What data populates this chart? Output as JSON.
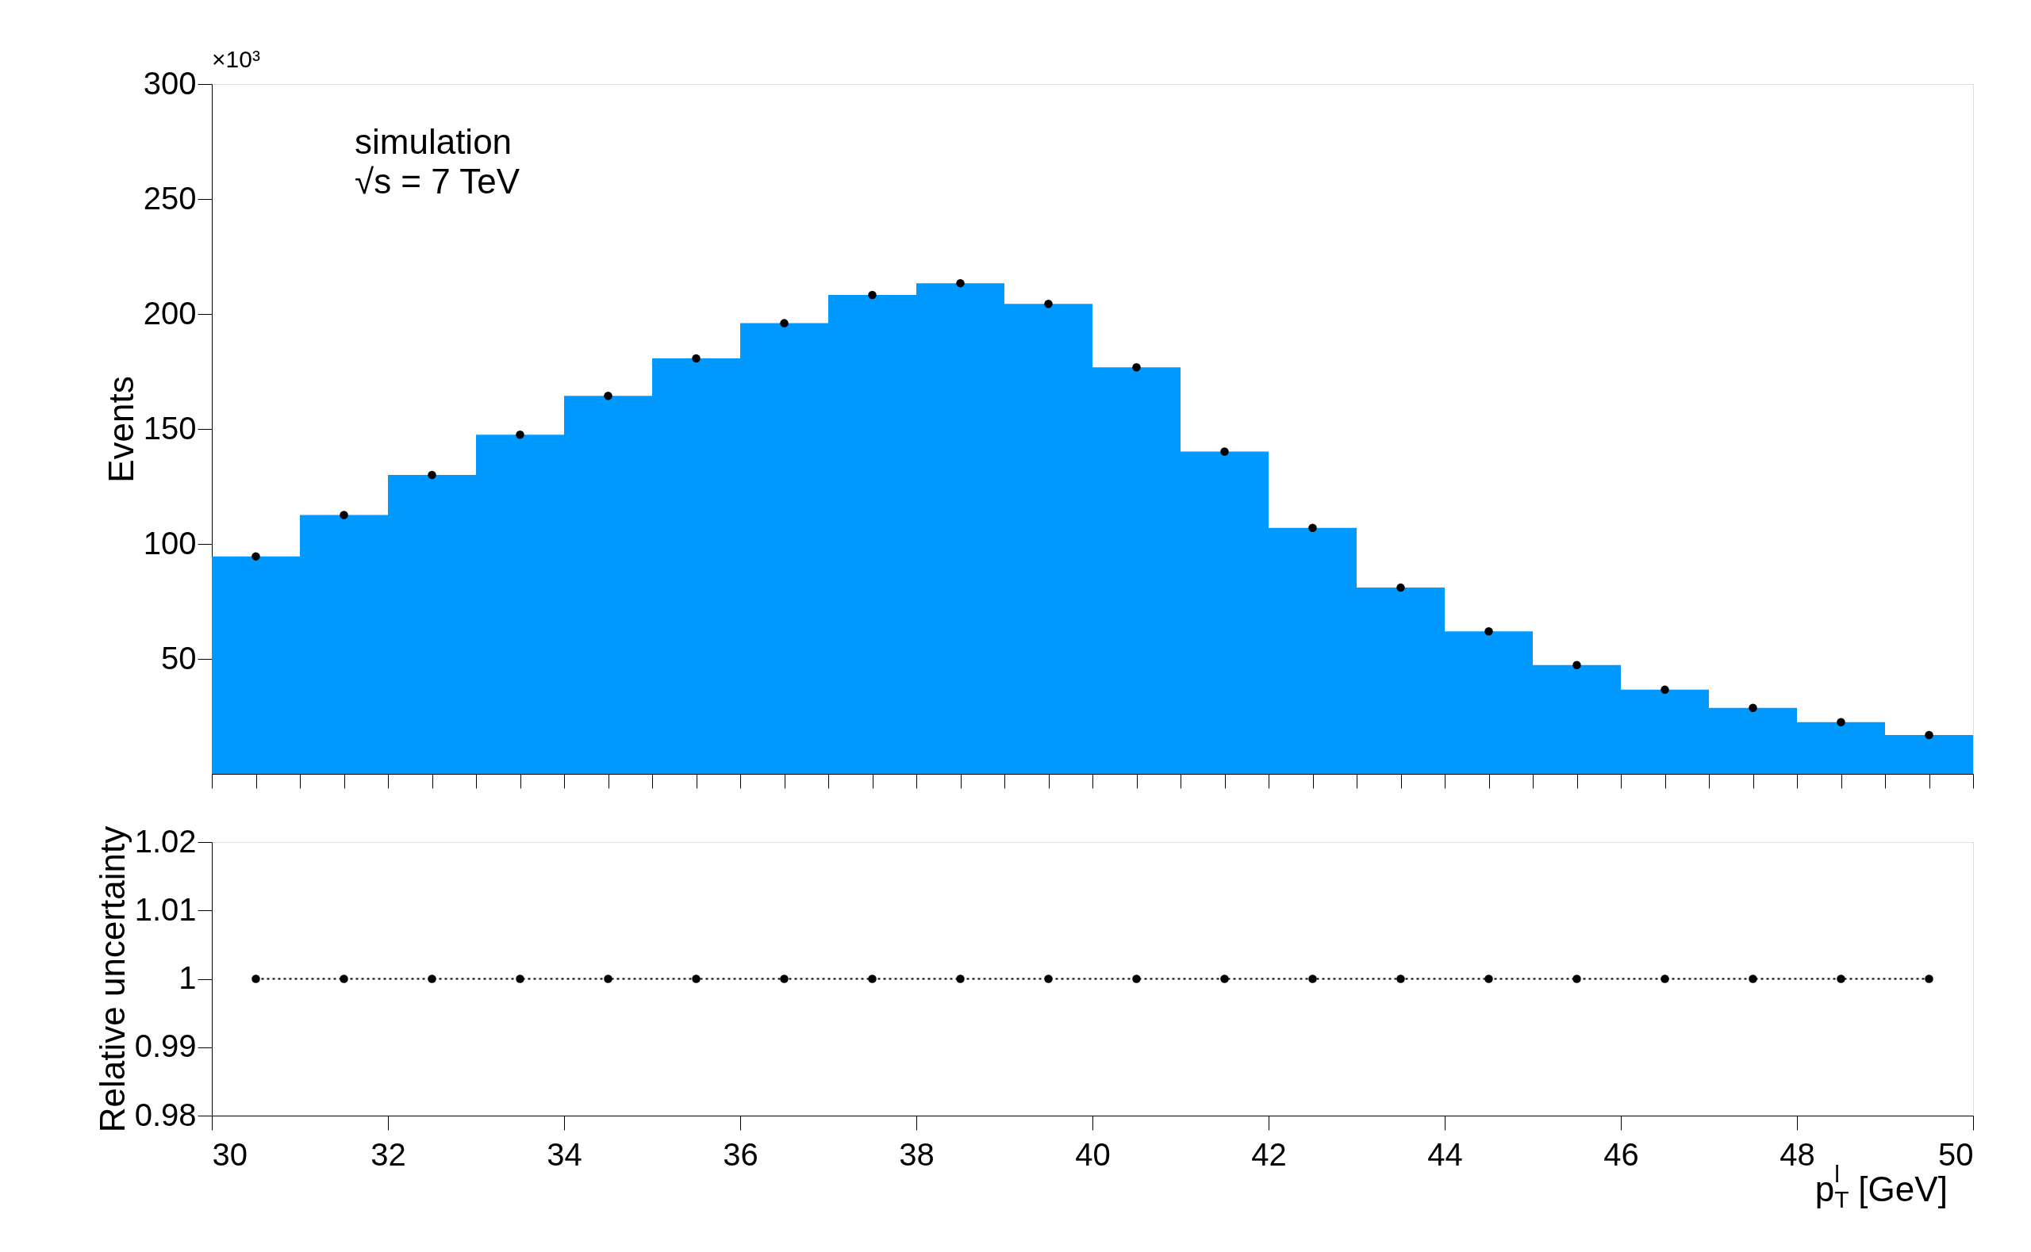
{
  "chart_data": [
    {
      "type": "histogram",
      "ylabel": "Events",
      "annotations": [
        "×10³",
        "simulation",
        "√s = 7 TeV"
      ],
      "bins": [
        30,
        31,
        32,
        33,
        34,
        35,
        36,
        37,
        38,
        39,
        40,
        41,
        42,
        43,
        44,
        45,
        46,
        47,
        48,
        49,
        50
      ],
      "series": [
        {
          "type": "histogram",
          "color": "#0099ff",
          "values": [
            94.6,
            112.6,
            130,
            147.5,
            164.4,
            180.7,
            196,
            208.3,
            213.4,
            204.4,
            176.8,
            140.2,
            107,
            81,
            62,
            47.3,
            36.6,
            28.7,
            22.5,
            16.9
          ]
        },
        {
          "type": "scatter",
          "color": "#000000",
          "marker": "circle",
          "x": [
            30.5,
            31.5,
            32.5,
            33.5,
            34.5,
            35.5,
            36.5,
            37.5,
            38.5,
            39.5,
            40.5,
            41.5,
            42.5,
            43.5,
            44.5,
            45.5,
            46.5,
            47.5,
            48.5,
            49.5
          ],
          "values": [
            94.6,
            112.6,
            130,
            147.5,
            164.4,
            180.7,
            196,
            208.3,
            213.4,
            204.4,
            176.8,
            140.2,
            107,
            81,
            62,
            47.3,
            36.6,
            28.7,
            22.5,
            16.9
          ]
        }
      ],
      "xlim": [
        30,
        50
      ],
      "ylim": [
        0,
        300
      ],
      "yticks": [
        50,
        100,
        150,
        200,
        250,
        300
      ],
      "tick_labels": "y",
      "grid": false
    },
    {
      "type": "line",
      "xlabel": "p$^{l}$$_{T}$ [GeV]",
      "ylabel": "Relative uncertainty",
      "x": [
        30.5,
        31.5,
        32.5,
        33.5,
        34.5,
        35.5,
        36.5,
        37.5,
        38.5,
        39.5,
        40.5,
        41.5,
        42.5,
        43.5,
        44.5,
        45.5,
        46.5,
        47.5,
        48.5,
        49.5
      ],
      "series": [
        {
          "color": "#000000",
          "values": [
            1,
            1,
            1,
            1,
            1,
            1,
            1,
            1,
            1,
            1,
            1,
            1,
            1,
            1,
            1,
            1,
            1,
            1,
            1,
            1
          ]
        }
      ],
      "marker": "circle",
      "line_style": "dotted",
      "xlim": [
        30,
        50
      ],
      "xticks": [
        30,
        32,
        34,
        36,
        38,
        40,
        42,
        44,
        46,
        48,
        50
      ],
      "ylim": [
        0.98,
        1.02
      ],
      "yticks": [
        0.98,
        0.99,
        1,
        1.01,
        1.02
      ],
      "grid": false
    }
  ]
}
